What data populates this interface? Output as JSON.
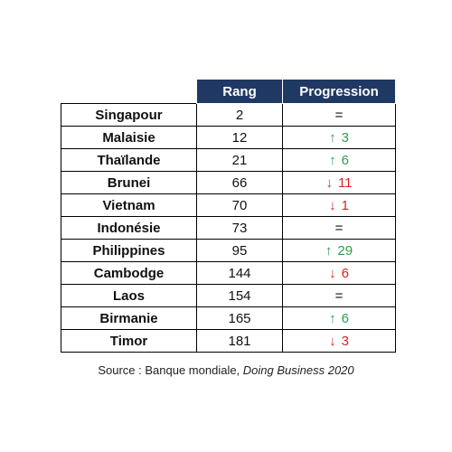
{
  "chart_data": {
    "type": "table",
    "columns": [
      "",
      "Rang",
      "Progression"
    ],
    "rows": [
      {
        "country": "Singapour",
        "rank": "2",
        "dir": "eq",
        "change": "="
      },
      {
        "country": "Malaisie",
        "rank": "12",
        "dir": "up",
        "change": "3"
      },
      {
        "country": "Thaïlande",
        "rank": "21",
        "dir": "up",
        "change": "6"
      },
      {
        "country": "Brunei",
        "rank": "66",
        "dir": "down",
        "change": "11"
      },
      {
        "country": "Vietnam",
        "rank": "70",
        "dir": "down",
        "change": "1"
      },
      {
        "country": "Indonésie",
        "rank": "73",
        "dir": "eq",
        "change": "="
      },
      {
        "country": "Philippines",
        "rank": "95",
        "dir": "up",
        "change": "29"
      },
      {
        "country": "Cambodge",
        "rank": "144",
        "dir": "down",
        "change": "6"
      },
      {
        "country": "Laos",
        "rank": "154",
        "dir": "eq",
        "change": "="
      },
      {
        "country": "Birmanie",
        "rank": "165",
        "dir": "up",
        "change": "6"
      },
      {
        "country": "Timor",
        "rank": "181",
        "dir": "down",
        "change": "3"
      }
    ]
  },
  "source": {
    "prefix": "Source : Banque mondiale, ",
    "title": "Doing Business 2020"
  },
  "colors": {
    "header_bg": "#1f3864",
    "up": "#2e9e4c",
    "down": "#e02020"
  },
  "icons": {
    "up": "arrow-up-icon",
    "down": "arrow-down-icon"
  }
}
